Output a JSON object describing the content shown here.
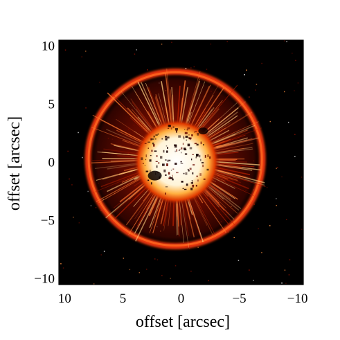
{
  "chart_data": {
    "type": "heatmap",
    "title": "",
    "xlabel": "offset [arcsec]",
    "ylabel": "offset [arcsec]",
    "xlim": [
      10.5,
      -10.5
    ],
    "ylim": [
      -10.5,
      10.5
    ],
    "x_ticks": [
      10,
      5,
      0,
      -5,
      -10
    ],
    "y_ticks": [
      -10,
      -5,
      0,
      5,
      10
    ],
    "x_tick_labels": [
      "10",
      "5",
      "0",
      "−5",
      "−10"
    ],
    "y_tick_labels": [
      "−10",
      "−5",
      "0",
      "5",
      "10"
    ],
    "colormap": [
      "#000000",
      "#3a0500",
      "#8a0f00",
      "#d42a00",
      "#ff6a10",
      "#ffd070",
      "#ffffff"
    ],
    "features": {
      "shell_radius_arcsec": 7.5,
      "shell_center_arcsec": [
        0.5,
        0.3
      ],
      "bright_core_radius_arcsec": 3.2,
      "background": "#000000"
    }
  }
}
